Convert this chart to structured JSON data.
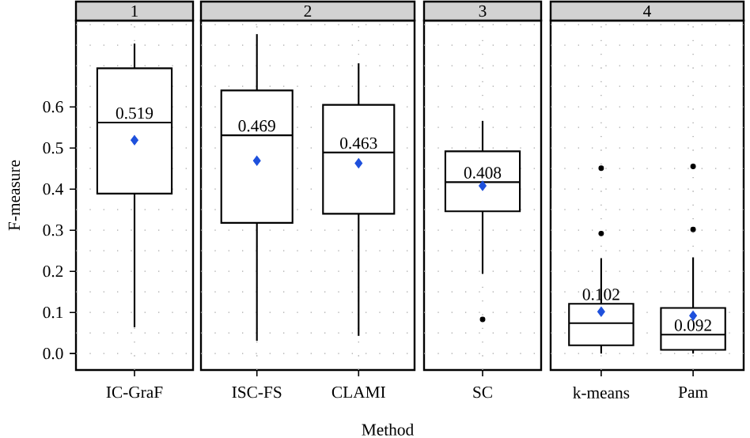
{
  "chart_data": [
    {
      "type": "box",
      "title": "1",
      "ylabel": "F-measure",
      "categories": [
        "IC-GraF"
      ],
      "ylim": [
        -0.04,
        0.81
      ],
      "yticks": [
        {
          "value": 0,
          "label": "0.0"
        },
        0.1,
        0.2,
        0.3,
        0.4,
        0.5,
        0.6
      ],
      "grid": true,
      "tick_labels": "xy",
      "series": [
        {
          "type": "box",
          "color": "#000000",
          "boxes": [
            {
              "low": 0.064,
              "q1": 0.389,
              "median": 0.562,
              "q3": 0.694,
              "high": 0.754
            }
          ]
        },
        {
          "type": "scatter",
          "marker": "diamond",
          "color": "#1e50dc",
          "x": [
            "IC-GraF"
          ],
          "values": [
            0.519
          ],
          "value_labels": [
            "0.519"
          ]
        }
      ]
    },
    {
      "type": "box",
      "title": "2",
      "categories": [
        "ISC-FS",
        "CLAMI"
      ],
      "ylim": [
        -0.04,
        0.81
      ],
      "yticks": [
        0,
        0.1,
        0.2,
        0.3,
        0.4,
        0.5,
        0.6
      ],
      "grid": true,
      "tick_labels": "x",
      "series": [
        {
          "type": "box",
          "color": "#000000",
          "boxes": [
            {
              "low": 0.031,
              "q1": 0.318,
              "median": 0.531,
              "q3": 0.64,
              "high": 0.777
            },
            {
              "low": 0.043,
              "q1": 0.34,
              "median": 0.489,
              "q3": 0.605,
              "high": 0.706
            }
          ]
        },
        {
          "type": "scatter",
          "marker": "diamond",
          "color": "#1e50dc",
          "x": [
            "ISC-FS",
            "CLAMI"
          ],
          "values": [
            0.469,
            0.463
          ],
          "value_labels": [
            "0.469",
            "0.463"
          ]
        }
      ]
    },
    {
      "type": "box",
      "title": "3",
      "xlabel": "Method",
      "categories": [
        "SC"
      ],
      "ylim": [
        -0.04,
        0.81
      ],
      "yticks": [
        0,
        0.1,
        0.2,
        0.3,
        0.4,
        0.5,
        0.6
      ],
      "grid": true,
      "tick_labels": "x",
      "series": [
        {
          "type": "box",
          "color": "#000000",
          "boxes": [
            {
              "low": 0.194,
              "q1": 0.346,
              "median": 0.417,
              "q3": 0.492,
              "high": 0.566,
              "outliers": [
                0.083
              ]
            }
          ]
        },
        {
          "type": "scatter",
          "marker": "diamond",
          "color": "#1e50dc",
          "x": [
            "SC"
          ],
          "values": [
            0.408
          ],
          "value_labels": [
            "0.408"
          ]
        }
      ]
    },
    {
      "type": "box",
      "title": "4",
      "categories": [
        "k-means",
        "Pam"
      ],
      "ylim": [
        -0.04,
        0.81
      ],
      "yticks": [
        0,
        0.1,
        0.2,
        0.3,
        0.4,
        0.5,
        0.6
      ],
      "grid": true,
      "tick_labels": "x",
      "series": [
        {
          "type": "box",
          "color": "#000000",
          "boxes": [
            {
              "low": 0.0,
              "q1": 0.02,
              "median": 0.074,
              "q3": 0.121,
              "high": 0.232,
              "outliers": [
                0.292,
                0.451
              ]
            },
            {
              "low": 0.0,
              "q1": 0.009,
              "median": 0.046,
              "q3": 0.111,
              "high": 0.234,
              "outliers": [
                0.302,
                0.455
              ]
            }
          ]
        },
        {
          "type": "scatter",
          "marker": "diamond",
          "color": "#1e50dc",
          "x": [
            "k-means",
            "Pam"
          ],
          "values": [
            0.102,
            0.092
          ],
          "value_labels": [
            "0.102",
            "0.092"
          ]
        }
      ]
    }
  ]
}
